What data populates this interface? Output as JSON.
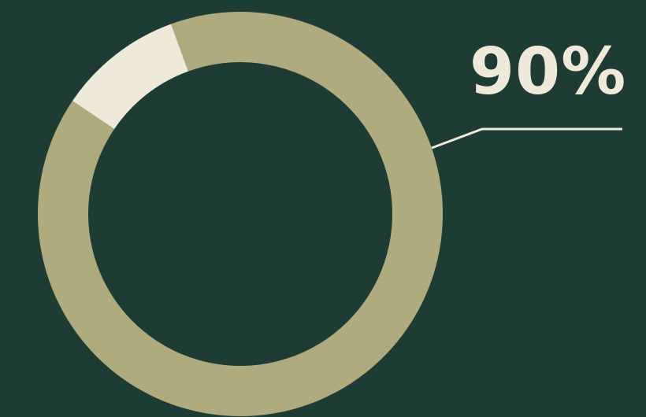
{
  "chart_data": {
    "type": "pie",
    "variant": "donut",
    "slices": [
      {
        "label": "",
        "value": 90,
        "color": "#afab7e",
        "highlight": true
      },
      {
        "label": "",
        "value": 10,
        "color": "#efe9d9"
      }
    ],
    "data_label": "90%",
    "legend": "none",
    "start_angle_deg": 0
  },
  "colors": {
    "background": "#1d3c34",
    "accent": "#afab7e",
    "highlight": "#efe9d9"
  }
}
